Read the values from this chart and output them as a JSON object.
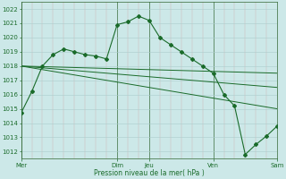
{
  "bg_color": "#cce8e8",
  "grid_color_h": "#aacccc",
  "grid_color_v": "#cc9999",
  "line_color": "#1a6b2a",
  "ylim": [
    1011.5,
    1022.5
  ],
  "yticks": [
    1012,
    1013,
    1014,
    1015,
    1016,
    1017,
    1018,
    1019,
    1020,
    1021,
    1022
  ],
  "xlabel": "Pression niveau de la mer( hPa )",
  "x_day_labels": [
    "Mer",
    "Dim",
    "Jeu",
    "Ven",
    "Sam"
  ],
  "x_day_positions": [
    0,
    9,
    12,
    18,
    24
  ],
  "line1_x": [
    0,
    1,
    2,
    3,
    4,
    5,
    6,
    7,
    8,
    9,
    10,
    11,
    12,
    13,
    14,
    15,
    16,
    17,
    18,
    19,
    20,
    21,
    22,
    23,
    24
  ],
  "line1_y": [
    1014.7,
    1016.2,
    1018.0,
    1018.8,
    1019.2,
    1019.0,
    1018.8,
    1018.7,
    1018.5,
    1020.9,
    1021.1,
    1021.5,
    1021.2,
    1020.0,
    1019.5,
    1019.0,
    1018.5,
    1018.0,
    1017.5,
    1016.0,
    1015.2,
    1011.8,
    1012.5,
    1013.1,
    1013.8
  ],
  "line2_x": [
    0,
    24
  ],
  "line2_y": [
    1018.0,
    1017.5
  ],
  "line3_x": [
    0,
    24
  ],
  "line3_y": [
    1018.0,
    1016.5
  ],
  "line4_x": [
    0,
    24
  ],
  "line4_y": [
    1018.0,
    1015.0
  ],
  "xlim": [
    0,
    24
  ],
  "num_minor_x": 24,
  "figsize": [
    3.2,
    2.0
  ],
  "dpi": 100
}
